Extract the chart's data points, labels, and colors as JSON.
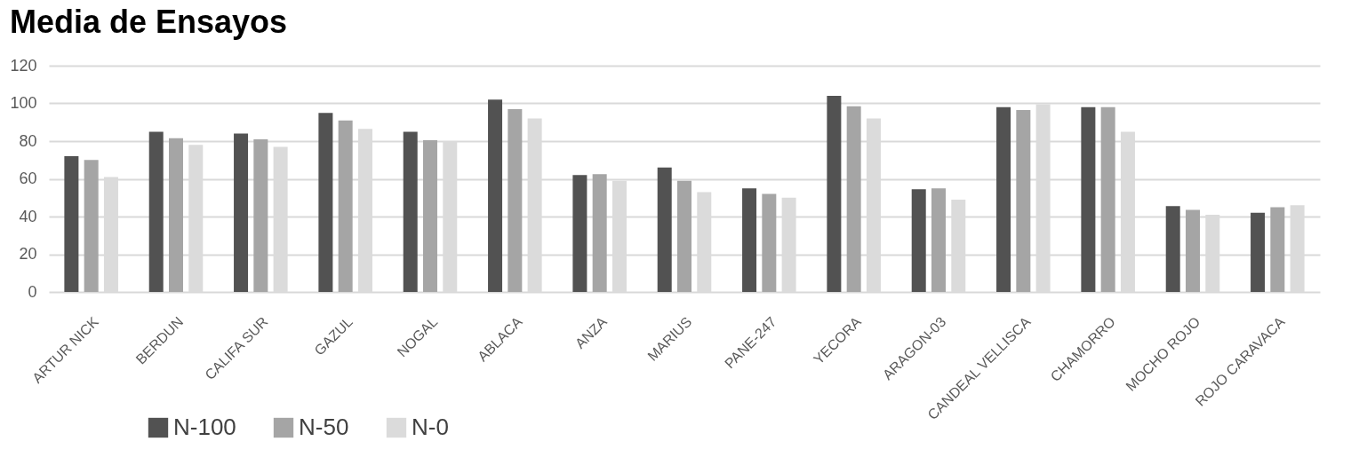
{
  "chart_data": {
    "type": "bar",
    "title": "Media de Ensayos",
    "categories": [
      "ARTUR NICK",
      "BERDUN",
      "CALIFA SUR",
      "GAZUL",
      "NOGAL",
      "ABLACA",
      "ANZA",
      "MARIUS",
      "PANE-247",
      "YECORA",
      "ARAGON-03",
      "CANDEAL VELLISCA",
      "CHAMORRO",
      "MOCHO ROJO",
      "ROJO CARAVACA"
    ],
    "series": [
      {
        "name": "N-100",
        "color": "#525252",
        "values": [
          72,
          85,
          84,
          95,
          85,
          102,
          62,
          66,
          55,
          104,
          54.5,
          98,
          98,
          45.5,
          42
        ]
      },
      {
        "name": "N-50",
        "color": "#a5a5a5",
        "values": [
          70,
          81.5,
          81,
          91,
          80.5,
          97,
          62.5,
          59,
          52,
          98.5,
          55,
          96.5,
          98,
          43.5,
          45
        ]
      },
      {
        "name": "N-0",
        "color": "#dbdbdb",
        "values": [
          61,
          78,
          77,
          86.5,
          80,
          92,
          59,
          53,
          50,
          92,
          49,
          99.5,
          85,
          41,
          46
        ]
      }
    ],
    "ylim": [
      0,
      120
    ],
    "yticks": [
      0,
      20,
      40,
      60,
      80,
      100,
      120
    ],
    "grid": "y",
    "legend": "bottom left"
  }
}
